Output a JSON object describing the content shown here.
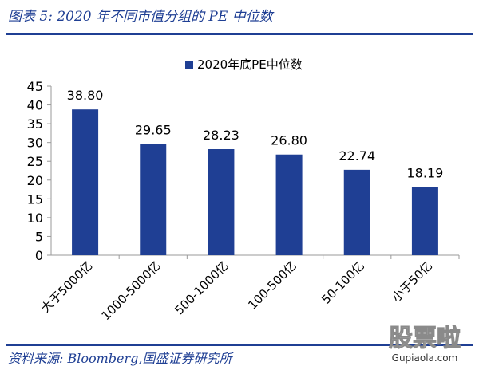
{
  "header": {
    "title": "图表 5:  2020 年不同市值分组的 PE 中位数"
  },
  "footer": {
    "source": "资料来源:  Bloomberg,国盛证券研究所"
  },
  "watermark": {
    "main": "股票啦",
    "url": "Gupiaola.com"
  },
  "chart_data": {
    "type": "bar",
    "title": "",
    "xlabel": "",
    "ylabel": "",
    "categories": [
      "大于5000亿",
      "1000-5000亿",
      "500-1000亿",
      "100-500亿",
      "50-100亿",
      "小于50亿"
    ],
    "series": [
      {
        "name": "2020年底PE中位数",
        "values": [
          38.8,
          29.65,
          28.23,
          26.8,
          22.74,
          18.19
        ]
      }
    ],
    "data_labels": [
      "38.80",
      "29.65",
      "28.23",
      "26.80",
      "22.74",
      "18.19"
    ],
    "ylim": [
      0,
      45
    ],
    "yticks": [
      0,
      5,
      10,
      15,
      20,
      25,
      30,
      35,
      40,
      45
    ],
    "grid": false,
    "legend_position": "top-center",
    "colors": {
      "bar": "#1f3f94",
      "text": "#1f3f94"
    }
  }
}
